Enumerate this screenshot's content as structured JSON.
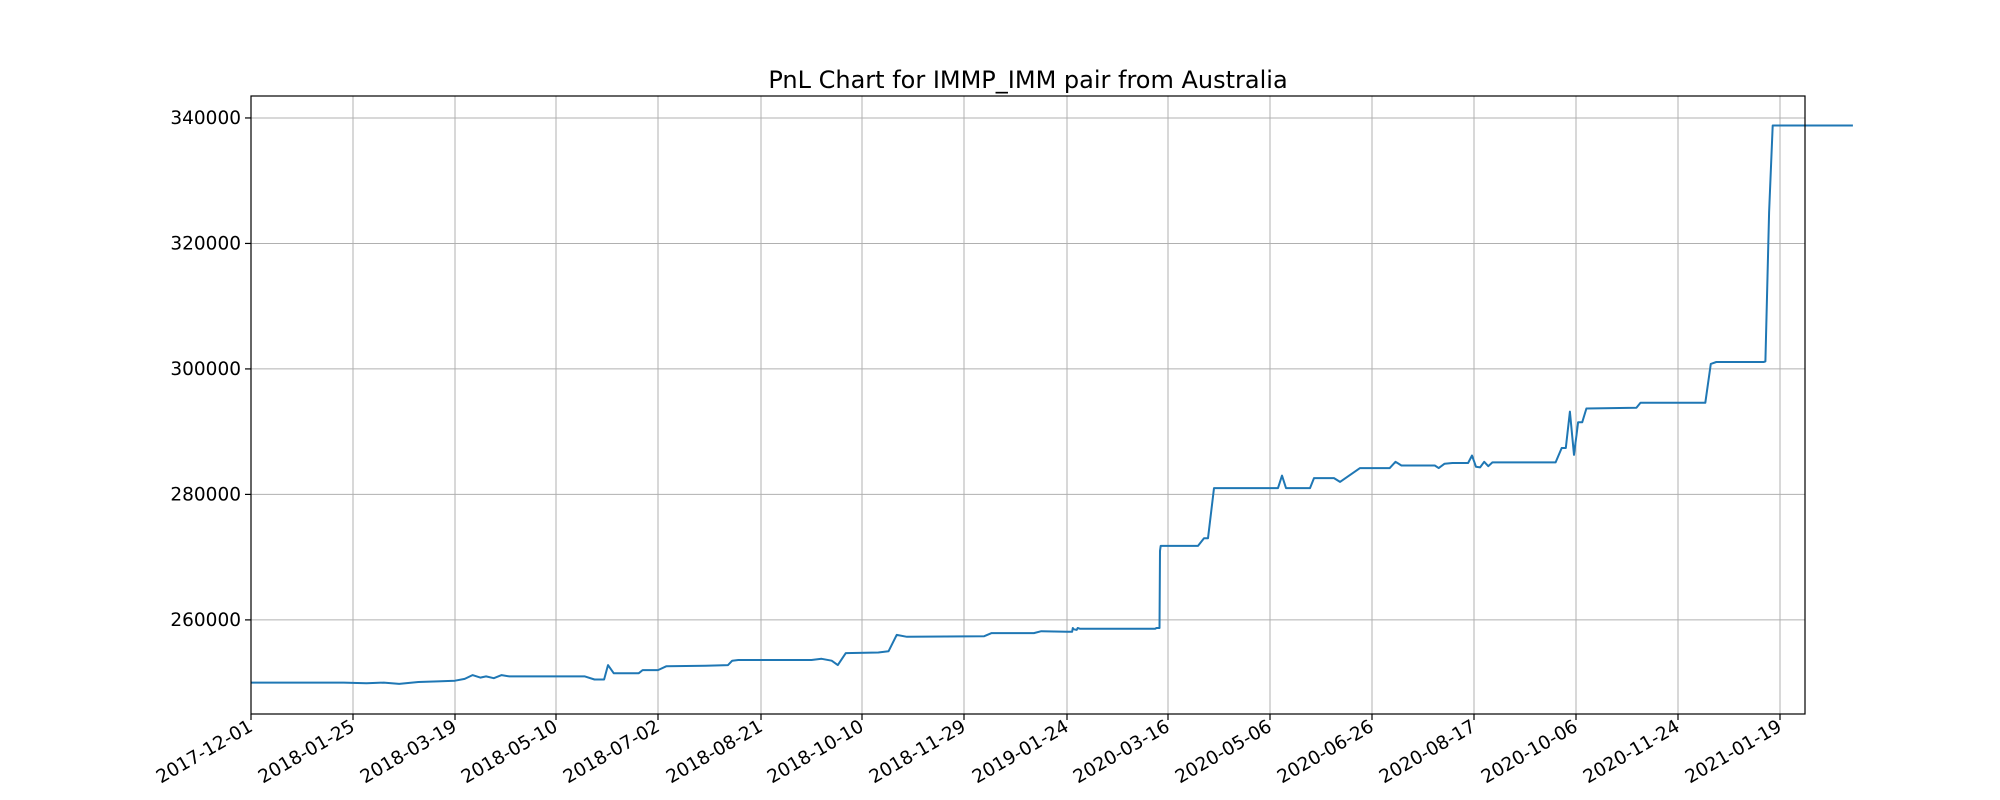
{
  "chart_data": {
    "type": "line",
    "title": "PnL Chart for IMMP_IMM pair from Australia",
    "xlabel": "",
    "ylabel": "",
    "grid": true,
    "x_scale": "categorical-dates",
    "y_ticks": [
      260000,
      280000,
      300000,
      320000,
      340000
    ],
    "y_tick_labels": [
      "260000",
      "280000",
      "300000",
      "320000",
      "340000"
    ],
    "ylim": [
      245000,
      343500
    ],
    "x_ticks": [
      "2017-12-01",
      "2018-01-25",
      "2018-03-19",
      "2018-05-10",
      "2018-07-02",
      "2018-08-21",
      "2018-10-10",
      "2018-11-29",
      "2019-01-24",
      "2020-03-16",
      "2020-05-06",
      "2020-06-26",
      "2020-08-17",
      "2020-10-06",
      "2020-11-24",
      "2021-01-19"
    ],
    "series": [
      {
        "color": "#1f77b4",
        "points": [
          [
            "2017-12-01",
            250000
          ],
          [
            "2018-01-20",
            250000
          ],
          [
            "2018-02-01",
            249900
          ],
          [
            "2018-02-10",
            250000
          ],
          [
            "2018-02-18",
            249800
          ],
          [
            "2018-02-28",
            250100
          ],
          [
            "2018-03-10",
            250200
          ],
          [
            "2018-03-19",
            250300
          ],
          [
            "2018-03-24",
            250600
          ],
          [
            "2018-03-28",
            251200
          ],
          [
            "2018-04-01",
            250800
          ],
          [
            "2018-04-04",
            251000
          ],
          [
            "2018-04-08",
            250700
          ],
          [
            "2018-04-12",
            251200
          ],
          [
            "2018-04-16",
            251000
          ],
          [
            "2018-05-25",
            251000
          ],
          [
            "2018-05-30",
            250500
          ],
          [
            "2018-06-04",
            250500
          ],
          [
            "2018-06-06",
            252800
          ],
          [
            "2018-06-09",
            251500
          ],
          [
            "2018-06-22",
            251500
          ],
          [
            "2018-06-24",
            252000
          ],
          [
            "2018-07-02",
            252000
          ],
          [
            "2018-07-06",
            252600
          ],
          [
            "2018-07-25",
            252700
          ],
          [
            "2018-08-05",
            252800
          ],
          [
            "2018-08-07",
            253500
          ],
          [
            "2018-08-10",
            253600
          ],
          [
            "2018-09-15",
            253600
          ],
          [
            "2018-09-20",
            253800
          ],
          [
            "2018-09-25",
            253500
          ],
          [
            "2018-09-28",
            252800
          ],
          [
            "2018-10-02",
            254700
          ],
          [
            "2018-10-18",
            254800
          ],
          [
            "2018-10-23",
            255000
          ],
          [
            "2018-10-27",
            257600
          ],
          [
            "2018-11-01",
            257300
          ],
          [
            "2018-12-10",
            257400
          ],
          [
            "2018-12-14",
            257900
          ],
          [
            "2019-01-06",
            257900
          ],
          [
            "2019-01-10",
            258200
          ],
          [
            "2019-01-24",
            258100
          ],
          [
            "2019-02-14",
            258100
          ],
          [
            "2019-02-17",
            258700
          ],
          [
            "2019-02-21",
            258500
          ],
          [
            "2019-03-05",
            258400
          ],
          [
            "2019-03-09",
            258700
          ],
          [
            "2019-03-18",
            258600
          ],
          [
            "2020-01-20",
            258600
          ],
          [
            "2020-01-24",
            258600
          ],
          [
            "2020-01-28",
            258700
          ],
          [
            "2020-02-10",
            258700
          ],
          [
            "2020-02-12",
            271000
          ],
          [
            "2020-02-15",
            271800
          ],
          [
            "2020-03-31",
            271800
          ],
          [
            "2020-04-03",
            273000
          ],
          [
            "2020-04-05",
            273000
          ],
          [
            "2020-04-08",
            281000
          ],
          [
            "2020-05-10",
            281000
          ],
          [
            "2020-05-12",
            283000
          ],
          [
            "2020-05-14",
            281000
          ],
          [
            "2020-05-26",
            281000
          ],
          [
            "2020-05-28",
            282600
          ],
          [
            "2020-06-07",
            282600
          ],
          [
            "2020-06-10",
            282000
          ],
          [
            "2020-06-20",
            284200
          ],
          [
            "2020-07-05",
            284200
          ],
          [
            "2020-07-08",
            285200
          ],
          [
            "2020-07-11",
            284600
          ],
          [
            "2020-07-28",
            284600
          ],
          [
            "2020-07-30",
            284200
          ],
          [
            "2020-08-02",
            284900
          ],
          [
            "2020-08-06",
            285000
          ],
          [
            "2020-08-14",
            285000
          ],
          [
            "2020-08-16",
            286200
          ],
          [
            "2020-08-18",
            284400
          ],
          [
            "2020-08-20",
            284300
          ],
          [
            "2020-08-22",
            285200
          ],
          [
            "2020-08-24",
            284500
          ],
          [
            "2020-08-26",
            285100
          ],
          [
            "2020-09-26",
            285100
          ],
          [
            "2020-09-29",
            287400
          ],
          [
            "2020-10-01",
            287400
          ],
          [
            "2020-10-03",
            293200
          ],
          [
            "2020-10-05",
            286300
          ],
          [
            "2020-10-07",
            291500
          ],
          [
            "2020-10-09",
            291500
          ],
          [
            "2020-10-11",
            293700
          ],
          [
            "2020-11-04",
            293800
          ],
          [
            "2020-11-06",
            294600
          ],
          [
            "2020-12-09",
            294600
          ],
          [
            "2020-12-12",
            300800
          ],
          [
            "2020-12-15",
            301100
          ],
          [
            "2021-01-10",
            301100
          ],
          [
            "2021-01-11",
            301200
          ],
          [
            "2021-01-13",
            325000
          ],
          [
            "2021-01-15",
            338800
          ],
          [
            "2021-02-28",
            338800
          ]
        ]
      }
    ]
  }
}
